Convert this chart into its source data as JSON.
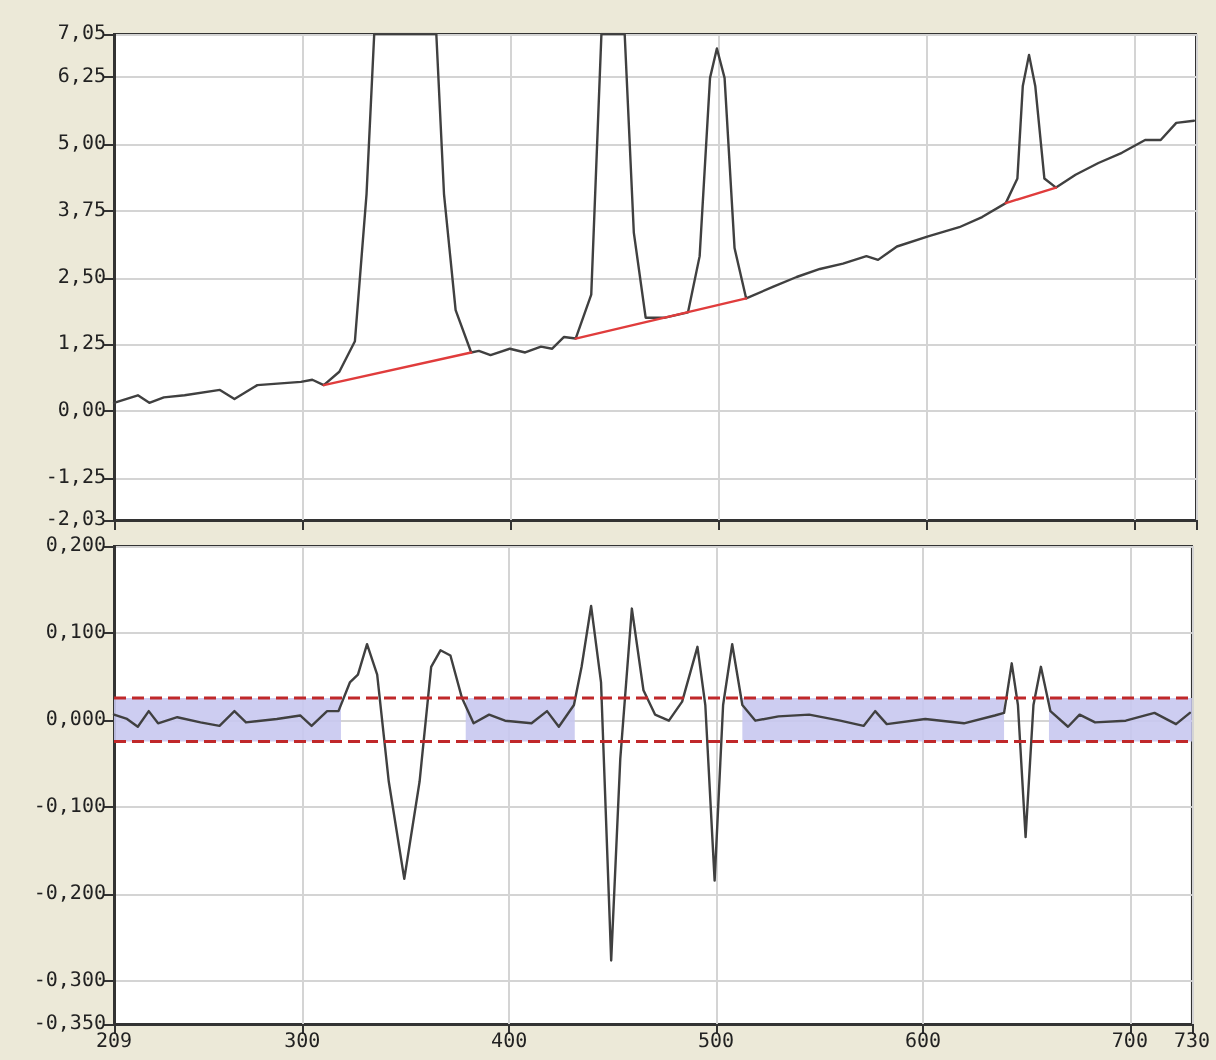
{
  "chart_data": [
    {
      "type": "line",
      "marker": "none",
      "grid": true,
      "tick_labels": "y",
      "xlim": [
        209,
        730
      ],
      "xticks": [
        209,
        300,
        400,
        500,
        600,
        700,
        730
      ],
      "ylim": [
        -2.03,
        7.05
      ],
      "yticks": [
        {
          "value": -2.03,
          "label": "-2,03"
        },
        {
          "value": -1.25,
          "label": "-1,25"
        },
        {
          "value": 0,
          "label": "0,00"
        },
        {
          "value": 1.25,
          "label": "1,25"
        },
        {
          "value": 2.5,
          "label": "2,50"
        },
        {
          "value": 3.75,
          "label": "3,75"
        },
        {
          "value": 5,
          "label": "5,00"
        },
        {
          "value": 6.25,
          "label": "6,25"
        },
        {
          "value": 7.05,
          "label": "7,05"
        }
      ],
      "series": [
        {
          "color": "#404040",
          "x": [
            209,
            220.5,
            226,
            233,
            243,
            260,
            267,
            278,
            299,
            304.5,
            310,
            317.5,
            325,
            330.6,
            334.3,
            364.2,
            367.9,
            373.5,
            381,
            384.7,
            390.3,
            399.6,
            407,
            414.6,
            420,
            425.7,
            431.3,
            438.8,
            443.7,
            454.9,
            459.3,
            465,
            474.3,
            485.4,
            491,
            496,
            499.3,
            503,
            507.8,
            513.4,
            526.5,
            537.7,
            548.9,
            560,
            571.3,
            576.9,
            586,
            601,
            616,
            627,
            638.4,
            644,
            646.6,
            649.6,
            652.6,
            657,
            662.6,
            672,
            683,
            694.3,
            705.5,
            713,
            720.5,
            729
          ],
          "values": [
            0.16,
            0.3,
            0.16,
            0.26,
            0.3,
            0.4,
            0.23,
            0.49,
            0.55,
            0.59,
            0.49,
            0.74,
            1.31,
            4.06,
            7.05,
            7.05,
            4.06,
            1.89,
            1.1,
            1.13,
            1.05,
            1.17,
            1.1,
            1.21,
            1.17,
            1.39,
            1.36,
            2.18,
            7.05,
            7.05,
            3.34,
            1.75,
            1.75,
            1.85,
            2.9,
            6.23,
            6.78,
            6.23,
            3.05,
            2.11,
            2.33,
            2.51,
            2.66,
            2.76,
            2.9,
            2.83,
            3.08,
            3.27,
            3.44,
            3.63,
            3.89,
            4.35,
            6.08,
            6.66,
            6.08,
            4.35,
            4.18,
            4.42,
            4.64,
            4.83,
            5.07,
            5.07,
            5.39,
            5.43
          ]
        },
        {
          "color": "#e03c3c",
          "x": [
            310,
            381
          ],
          "values": [
            0.49,
            1.1
          ]
        },
        {
          "color": "#e03c3c",
          "x": [
            431.3,
            513.4
          ],
          "values": [
            1.36,
            2.11
          ]
        },
        {
          "color": "#e03c3c",
          "x": [
            638.4,
            662.6
          ],
          "values": [
            3.89,
            4.18
          ]
        }
      ]
    },
    {
      "type": "line",
      "marker": "none",
      "grid": true,
      "xlim": [
        209,
        730
      ],
      "xticks": [
        209,
        300,
        400,
        500,
        600,
        700,
        730
      ],
      "ylim": [
        -0.35,
        0.2
      ],
      "yticks": [
        {
          "value": -0.35,
          "label": "-0,350"
        },
        {
          "value": -0.3,
          "label": "-0,300"
        },
        {
          "value": -0.2,
          "label": "-0,200"
        },
        {
          "value": -0.1,
          "label": "-0,100"
        },
        {
          "value": 0,
          "label": "0,000"
        },
        {
          "value": 0.1,
          "label": "0,100"
        },
        {
          "value": 0.2,
          "label": "0,200"
        }
      ],
      "ref_lines": [
        {
          "axis": "y",
          "value": 0.025,
          "color": "#c0282a",
          "line_style": "dashed"
        },
        {
          "axis": "y",
          "value": -0.025,
          "color": "#c0282a",
          "line_style": "dashed"
        }
      ],
      "bands": [
        {
          "axis": "x",
          "from": 209,
          "to": 318.7,
          "color": "#c8c8f0"
        },
        {
          "axis": "x",
          "from": 379,
          "to": 431.7,
          "color": "#c8c8f0"
        },
        {
          "axis": "x",
          "from": 512.7,
          "to": 639.2,
          "color": "#c8c8f0"
        },
        {
          "axis": "x",
          "from": 660.9,
          "to": 730,
          "color": "#c8c8f0"
        }
      ],
      "series": [
        {
          "color": "#404040",
          "x": [
            209,
            215.3,
            220.5,
            225.8,
            230.3,
            239.6,
            250.8,
            260,
            267.2,
            272.8,
            287.7,
            299,
            304.5,
            312,
            317.5,
            323,
            326.9,
            331.3,
            336.2,
            341.8,
            349.3,
            356.7,
            362.3,
            366.8,
            371.6,
            377.2,
            382.8,
            390.3,
            398,
            410.8,
            418.3,
            424,
            431.3,
            435,
            439.6,
            444.4,
            449.3,
            453.7,
            459.3,
            464.9,
            470.5,
            477.2,
            483.6,
            491,
            494.8,
            499.3,
            503.4,
            507.8,
            512.7,
            519,
            530.2,
            545,
            560,
            571.3,
            576.9,
            582.5,
            601.1,
            619.8,
            634.7,
            639.2,
            642.9,
            645.9,
            649.6,
            653.4,
            657,
            661.6,
            670.1,
            675.7,
            683.2,
            698,
            711.9,
            722.3,
            729
          ],
          "values": [
            0.006,
            0.001,
            -0.008,
            0.01,
            -0.004,
            0.003,
            -0.003,
            -0.007,
            0.01,
            -0.003,
            0.001,
            0.005,
            -0.007,
            0.01,
            0.01,
            0.043,
            0.052,
            0.087,
            0.052,
            -0.071,
            -0.183,
            -0.071,
            0.061,
            0.08,
            0.074,
            0.025,
            -0.004,
            0.006,
            -0.001,
            -0.004,
            0.01,
            -0.008,
            0.017,
            0.061,
            0.131,
            0.043,
            -0.277,
            -0.045,
            0.128,
            0.034,
            0.006,
            -0.001,
            0.021,
            0.084,
            0.017,
            -0.185,
            0.017,
            0.087,
            0.017,
            -0.001,
            0.004,
            0.006,
            -0.001,
            -0.007,
            0.01,
            -0.005,
            0.001,
            -0.004,
            0.005,
            0.008,
            0.065,
            0.017,
            -0.135,
            0.017,
            0.061,
            0.01,
            -0.008,
            0.006,
            -0.003,
            -0.001,
            0.008,
            -0.005,
            0.008
          ]
        }
      ]
    }
  ]
}
